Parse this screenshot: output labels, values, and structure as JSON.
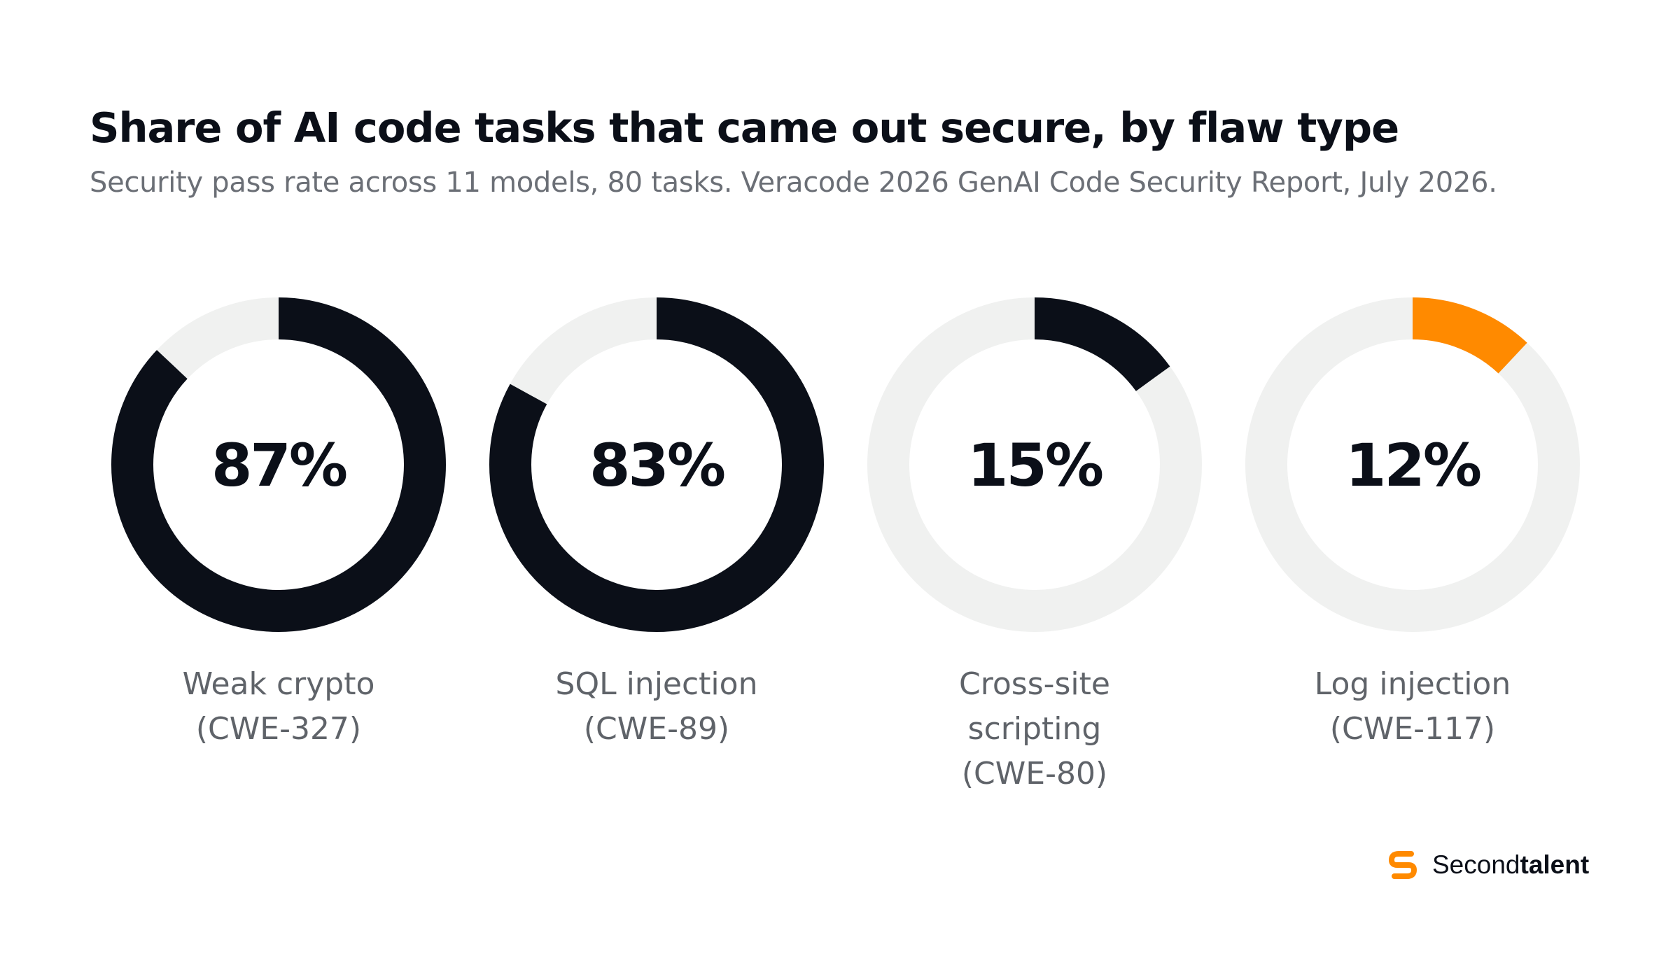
{
  "title": "Share of AI code tasks that came out secure, by flaw type",
  "subtitle": "Security pass rate across 11 models, 80 tasks. Veracode 2026 GenAI Code Security Report, July 2026.",
  "colors": {
    "dark": "#0b0f18",
    "accent": "#ff8a00",
    "track": "#f0f1f0",
    "label": "#5f6369"
  },
  "chart_data": {
    "type": "donut",
    "unit": "%",
    "items": [
      {
        "value": 87,
        "value_label": "87%",
        "label_lines": [
          "Weak crypto",
          "(CWE-327)"
        ],
        "color": "#0b0f18"
      },
      {
        "value": 83,
        "value_label": "83%",
        "label_lines": [
          "SQL injection",
          "(CWE-89)"
        ],
        "color": "#0b0f18"
      },
      {
        "value": 15,
        "value_label": "15%",
        "label_lines": [
          "Cross-site",
          "scripting",
          "(CWE-80)"
        ],
        "color": "#0b0f18"
      },
      {
        "value": 12,
        "value_label": "12%",
        "label_lines": [
          "Log injection",
          "(CWE-117)"
        ],
        "color": "#ff8a00"
      }
    ]
  },
  "logo": {
    "text_regular": "Second",
    "text_bold": "talent",
    "icon": "secondtalent-s-logo-icon"
  }
}
